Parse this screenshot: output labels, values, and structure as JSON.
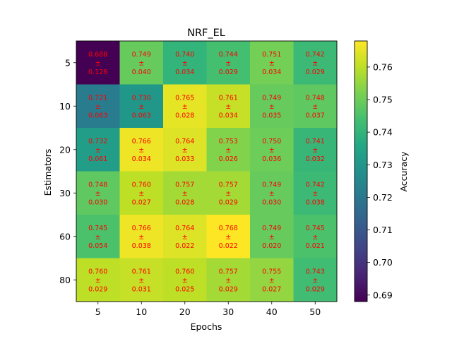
{
  "chart_data": {
    "type": "heatmap",
    "title": "NRF_EL",
    "xlabel": "Epochs",
    "ylabel": "Estimators",
    "colorbar_label": "Accuracy",
    "x_categories": [
      "5",
      "10",
      "20",
      "30",
      "40",
      "50"
    ],
    "y_categories": [
      "5",
      "10",
      "20",
      "30",
      "60",
      "80"
    ],
    "values": [
      [
        0.688,
        0.749,
        0.74,
        0.744,
        0.751,
        0.742
      ],
      [
        0.721,
        0.73,
        0.765,
        0.761,
        0.749,
        0.748
      ],
      [
        0.732,
        0.766,
        0.764,
        0.753,
        0.75,
        0.741
      ],
      [
        0.748,
        0.76,
        0.757,
        0.757,
        0.749,
        0.742
      ],
      [
        0.745,
        0.766,
        0.764,
        0.768,
        0.749,
        0.745
      ],
      [
        0.76,
        0.761,
        0.76,
        0.757,
        0.755,
        0.743
      ]
    ],
    "std": [
      [
        0.126,
        0.04,
        0.034,
        0.029,
        0.034,
        0.029
      ],
      [
        0.063,
        0.063,
        0.028,
        0.034,
        0.035,
        0.037
      ],
      [
        0.061,
        0.034,
        0.033,
        0.026,
        0.036,
        0.032
      ],
      [
        0.03,
        0.027,
        0.028,
        0.029,
        0.03,
        0.038
      ],
      [
        0.054,
        0.038,
        0.022,
        0.022,
        0.02,
        0.021
      ],
      [
        0.029,
        0.031,
        0.025,
        0.029,
        0.027,
        0.029
      ]
    ],
    "value_labels": [
      [
        "0.688",
        "0.749",
        "0.740",
        "0.744",
        "0.751",
        "0.742"
      ],
      [
        "0.721",
        "0.730",
        "0.765",
        "0.761",
        "0.749",
        "0.748"
      ],
      [
        "0.732",
        "0.766",
        "0.764",
        "0.753",
        "0.750",
        "0.741"
      ],
      [
        "0.748",
        "0.760",
        "0.757",
        "0.757",
        "0.749",
        "0.742"
      ],
      [
        "0.745",
        "0.766",
        "0.764",
        "0.768",
        "0.749",
        "0.745"
      ],
      [
        "0.760",
        "0.761",
        "0.760",
        "0.757",
        "0.755",
        "0.743"
      ]
    ],
    "std_labels": [
      [
        "0.126",
        "0.040",
        "0.034",
        "0.029",
        "0.034",
        "0.029"
      ],
      [
        "0.063",
        "0.063",
        "0.028",
        "0.034",
        "0.035",
        "0.037"
      ],
      [
        "0.061",
        "0.034",
        "0.033",
        "0.026",
        "0.036",
        "0.032"
      ],
      [
        "0.030",
        "0.027",
        "0.028",
        "0.029",
        "0.030",
        "0.038"
      ],
      [
        "0.054",
        "0.038",
        "0.022",
        "0.022",
        "0.020",
        "0.021"
      ],
      [
        "0.029",
        "0.031",
        "0.025",
        "0.029",
        "0.027",
        "0.029"
      ]
    ],
    "pm_symbol": "±",
    "color_range": [
      0.688,
      0.768
    ],
    "colormap": "viridis",
    "annotation_color": "#ff0000",
    "colorbar_ticks": [
      0.69,
      0.7,
      0.71,
      0.72,
      0.73,
      0.74,
      0.75,
      0.76
    ],
    "colorbar_tick_labels": [
      "0.69",
      "0.70",
      "0.71",
      "0.72",
      "0.73",
      "0.74",
      "0.75",
      "0.76"
    ],
    "grid": false
  }
}
